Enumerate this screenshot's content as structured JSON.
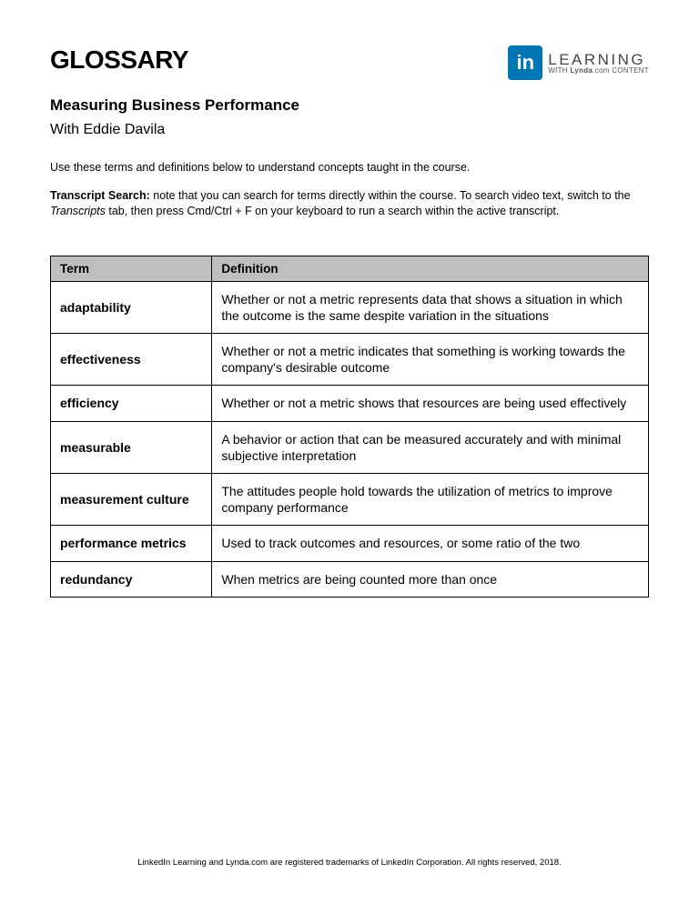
{
  "header": {
    "title": "GLOSSARY",
    "logo": {
      "badge": "in",
      "line1": "LEARNING",
      "line2_prefix": "WITH ",
      "line2_bold": "Lynda",
      "line2_suffix": ".com CONTENT"
    }
  },
  "subtitle": "Measuring Business Performance",
  "author": "With Eddie Davila",
  "intro": "Use these terms and definitions below to understand concepts taught in the course.",
  "tip": {
    "label": "Transcript Search:",
    "text1": " note that you can search for terms directly within the course. To search video text, switch to the ",
    "italic": "Transcripts",
    "text2": " tab, then press Cmd/Ctrl + F on your keyboard to run a search within the active transcript."
  },
  "table": {
    "headers": {
      "term": "Term",
      "definition": "Definition"
    },
    "rows": [
      {
        "term": "adaptability",
        "definition": "Whether or not a metric represents data that shows a situation in which the outcome is the same despite variation in the situations"
      },
      {
        "term": "effectiveness",
        "definition": "Whether or not a metric indicates that something is working towards the company's desirable outcome"
      },
      {
        "term": "efficiency",
        "definition": "Whether or not a metric shows that resources are being used effectively"
      },
      {
        "term": "measurable",
        "definition": "A behavior or action that can be measured accurately and with minimal subjective interpretation"
      },
      {
        "term": "measurement culture",
        "definition": "The attitudes people hold towards the utilization of metrics to improve company performance"
      },
      {
        "term": "performance metrics",
        "definition": "Used to track outcomes and resources, or some ratio of the two"
      },
      {
        "term": "redundancy",
        "definition": "When metrics are being counted more than once"
      }
    ]
  },
  "footer": "LinkedIn Learning and Lynda.com are registered trademarks of LinkedIn Corporation. All rights reserved, 2018."
}
